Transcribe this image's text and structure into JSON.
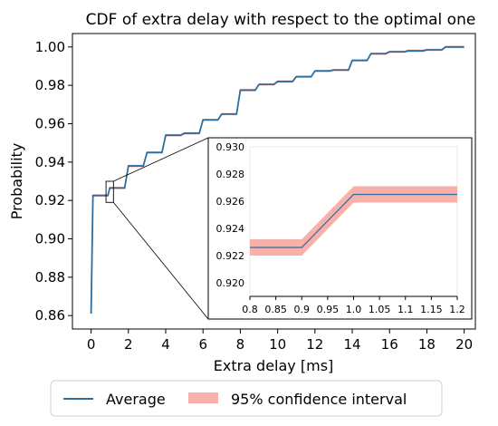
{
  "chart_data": {
    "type": "line",
    "title": "CDF of extra delay with respect to the optimal one",
    "xlabel": "Extra delay [ms]",
    "ylabel": "Probability",
    "xlim": [
      -1,
      20.6
    ],
    "ylim": [
      0.853,
      1.007
    ],
    "x_ticks": [
      "0",
      "2",
      "4",
      "6",
      "8",
      "10",
      "12",
      "14",
      "16",
      "18",
      "20"
    ],
    "y_ticks": [
      "0.86",
      "0.88",
      "0.90",
      "0.92",
      "0.94",
      "0.96",
      "0.98",
      "1.00"
    ],
    "grid": false,
    "legend_position": "bottom-outside",
    "legend": [
      "Average",
      "95% confidence interval"
    ],
    "series": [
      {
        "name": "Average",
        "color": "#2e6e9e",
        "x": [
          0,
          0.1,
          0.2,
          0.4,
          0.6,
          0.8,
          0.9,
          1.0,
          1.2,
          1.4,
          1.6,
          1.8,
          2.0,
          2.2,
          2.4,
          2.6,
          2.8,
          3.0,
          3.2,
          3.4,
          3.6,
          3.8,
          4.0,
          4.2,
          4.4,
          4.6,
          4.8,
          5.0,
          5.2,
          5.4,
          5.6,
          5.8,
          6.0,
          6.2,
          6.4,
          6.6,
          6.8,
          7.0,
          7.2,
          7.4,
          7.6,
          7.8,
          8.0,
          8.2,
          8.4,
          8.6,
          8.8,
          9.0,
          9.2,
          9.4,
          9.6,
          9.8,
          10.0,
          10.2,
          10.4,
          10.6,
          10.8,
          11.0,
          11.2,
          11.4,
          11.6,
          11.8,
          12.0,
          12.2,
          12.4,
          12.6,
          12.8,
          13.0,
          13.2,
          13.4,
          13.6,
          13.8,
          14.0,
          14.2,
          14.4,
          14.6,
          14.8,
          15.0,
          15.2,
          15.4,
          15.6,
          15.8,
          16.0,
          16.2,
          16.4,
          16.6,
          16.8,
          17.0,
          17.2,
          17.4,
          17.6,
          17.8,
          18.0,
          18.2,
          18.4,
          18.6,
          18.8,
          19.0,
          19.2,
          19.4,
          19.6,
          19.8,
          20.0
        ],
        "y": [
          0.861,
          0.9226,
          0.9226,
          0.9226,
          0.9226,
          0.9226,
          0.9226,
          0.9265,
          0.9265,
          0.9265,
          0.9265,
          0.9265,
          0.938,
          0.938,
          0.938,
          0.938,
          0.938,
          0.945,
          0.945,
          0.945,
          0.945,
          0.945,
          0.954,
          0.954,
          0.954,
          0.954,
          0.954,
          0.955,
          0.955,
          0.955,
          0.955,
          0.955,
          0.962,
          0.962,
          0.962,
          0.962,
          0.962,
          0.965,
          0.965,
          0.965,
          0.965,
          0.965,
          0.9775,
          0.9775,
          0.9775,
          0.9775,
          0.9775,
          0.9805,
          0.9805,
          0.9805,
          0.9805,
          0.9805,
          0.982,
          0.982,
          0.982,
          0.982,
          0.982,
          0.9845,
          0.9845,
          0.9845,
          0.9845,
          0.9845,
          0.9875,
          0.9875,
          0.9875,
          0.9875,
          0.9875,
          0.988,
          0.988,
          0.988,
          0.988,
          0.988,
          0.993,
          0.993,
          0.993,
          0.993,
          0.993,
          0.9965,
          0.9965,
          0.9965,
          0.9965,
          0.9965,
          0.9975,
          0.9975,
          0.9975,
          0.9975,
          0.9975,
          0.998,
          0.998,
          0.998,
          0.998,
          0.998,
          0.9985,
          0.9985,
          0.9985,
          0.9985,
          0.9985,
          1.0,
          1.0,
          1.0,
          1.0,
          1.0,
          1.0
        ]
      }
    ],
    "confidence_band": {
      "name": "95% confidence interval",
      "color": "#f8b0a8",
      "half_width": 0.0006
    },
    "inset": {
      "xlim": [
        0.8,
        1.2
      ],
      "ylim": [
        0.919,
        0.93
      ],
      "x_ticks": [
        "0.8",
        "0.85",
        "0.9",
        "0.95",
        "1.0",
        "1.05",
        "1.1",
        "1.15",
        "1.2"
      ],
      "y_ticks": [
        "0.920",
        "0.922",
        "0.924",
        "0.926",
        "0.928",
        "0.930"
      ],
      "x": [
        0.8,
        0.9,
        1.0,
        1.2
      ],
      "y": [
        0.9226,
        0.9226,
        0.9265,
        0.9265
      ]
    }
  }
}
